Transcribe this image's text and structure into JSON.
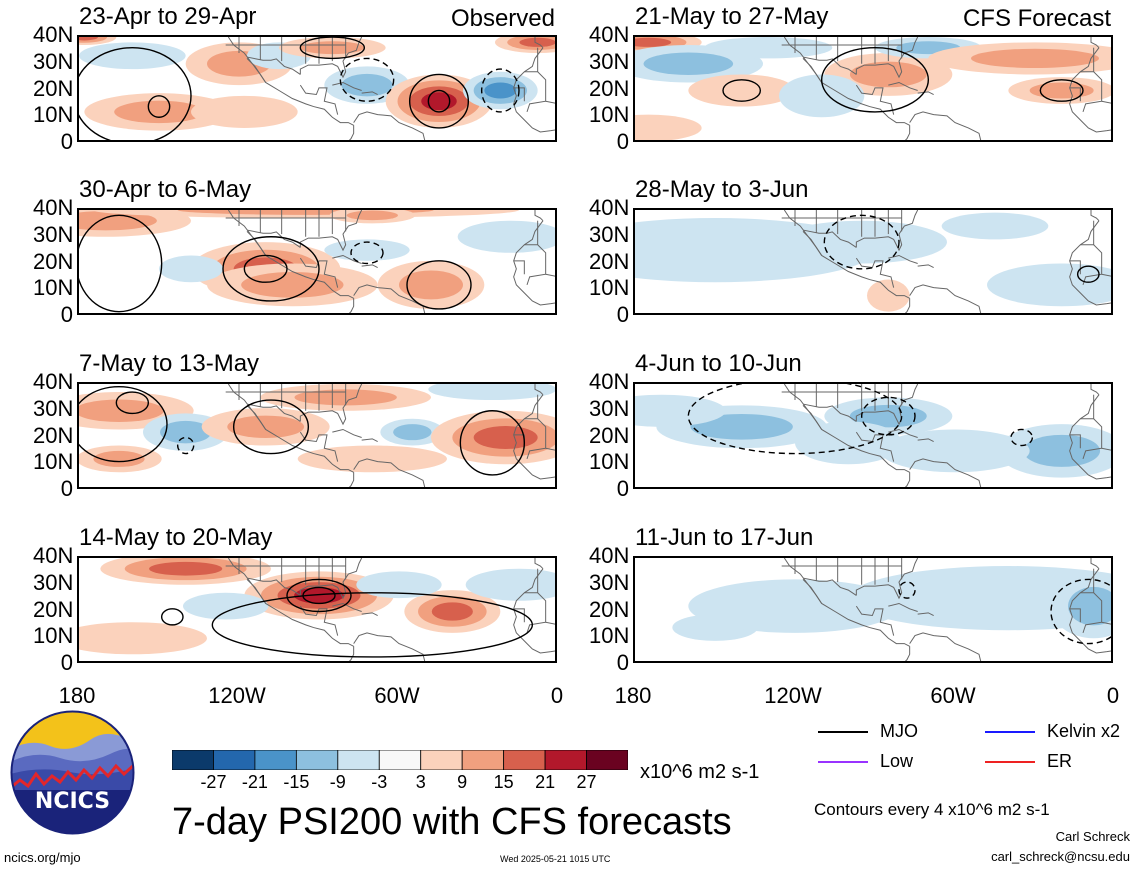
{
  "panels": [
    {
      "id": "p1",
      "column": "observed",
      "row": 0,
      "title": "23-Apr to 29-Apr",
      "tag": "Observed"
    },
    {
      "id": "p2",
      "column": "observed",
      "row": 1,
      "title": "30-Apr to 6-May",
      "tag": ""
    },
    {
      "id": "p3",
      "column": "observed",
      "row": 2,
      "title": "7-May to 13-May",
      "tag": ""
    },
    {
      "id": "p4",
      "column": "observed",
      "row": 3,
      "title": "14-May to 20-May",
      "tag": ""
    },
    {
      "id": "p5",
      "column": "forecast",
      "row": 0,
      "title": "21-May to 27-May",
      "tag": "CFS Forecast"
    },
    {
      "id": "p6",
      "column": "forecast",
      "row": 1,
      "title": "28-May to 3-Jun",
      "tag": ""
    },
    {
      "id": "p7",
      "column": "forecast",
      "row": 2,
      "title": "4-Jun to 10-Jun",
      "tag": ""
    },
    {
      "id": "p8",
      "column": "forecast",
      "row": 3,
      "title": "11-Jun to 17-Jun",
      "tag": ""
    }
  ],
  "lat_labels": [
    "40N",
    "30N",
    "20N",
    "10N",
    "0"
  ],
  "lon_labels": [
    "180",
    "120W",
    "60W",
    "0"
  ],
  "colorbar": {
    "labels": [
      "-27",
      "-21",
      "-15",
      "-9",
      "-3",
      "3",
      "9",
      "15",
      "21",
      "27"
    ],
    "colors": [
      "#0b3a6b",
      "#2367ad",
      "#4a93c9",
      "#8dc0df",
      "#cde4f1",
      "#f8f8f8",
      "#fbd2bc",
      "#f1a07f",
      "#d7604d",
      "#b2182b",
      "#6a0220"
    ],
    "units": "x10^6 m2 s-1"
  },
  "legend": [
    {
      "label": "MJO",
      "color": "#000000"
    },
    {
      "label": "Kelvin x2",
      "color": "#1a1aff"
    },
    {
      "label": "Low",
      "color": "#9933ff"
    },
    {
      "label": "ER",
      "color": "#ee2222"
    }
  ],
  "contour_note": "Contours every 4 x10^6 m2 s-1",
  "main_title": "7-day PSI200 with CFS forecasts",
  "logo_text": "NCICS",
  "site": "ncics.org/mjo",
  "timestamp": "Wed 2025-05-21 1015 UTC",
  "author": "Carl Schreck",
  "email": "carl_schreck@ncsu.edu",
  "shading": {
    "p1": [
      {
        "lon": -178,
        "lat": 40,
        "v": 18,
        "rx": 6,
        "ry": 3
      },
      {
        "lon": -150,
        "lat": 12,
        "v": 10,
        "rx": 14,
        "ry": 7
      },
      {
        "lon": -120,
        "lat": 30,
        "v": 8,
        "rx": 10,
        "ry": 8
      },
      {
        "lon": -118,
        "lat": 12,
        "v": 6,
        "rx": 10,
        "ry": 6
      },
      {
        "lon": -105,
        "lat": 33,
        "v": -6,
        "rx": 6,
        "ry": 5
      },
      {
        "lon": -85,
        "lat": 36,
        "v": 12,
        "rx": 10,
        "ry": 4
      },
      {
        "lon": -72,
        "lat": 22,
        "v": -12,
        "rx": 8,
        "ry": 7
      },
      {
        "lon": -45,
        "lat": 16,
        "v": 20,
        "rx": 10,
        "ry": 10
      },
      {
        "lon": -22,
        "lat": 20,
        "v": -14,
        "rx": 7,
        "ry": 7
      },
      {
        "lon": -8,
        "lat": 38,
        "v": 14,
        "rx": 8,
        "ry": 4
      },
      {
        "lon": -160,
        "lat": 33,
        "v": -5,
        "rx": 10,
        "ry": 5
      }
    ],
    "p2": [
      {
        "lon": -170,
        "lat": 36,
        "v": 10,
        "rx": 16,
        "ry": 6
      },
      {
        "lon": -110,
        "lat": 18,
        "v": 16,
        "rx": 14,
        "ry": 10
      },
      {
        "lon": -100,
        "lat": 12,
        "v": 8,
        "rx": 16,
        "ry": 8
      },
      {
        "lon": -95,
        "lat": 40,
        "v": 7,
        "rx": 40,
        "ry": 3
      },
      {
        "lon": -70,
        "lat": 38,
        "v": 12,
        "rx": 8,
        "ry": 3
      },
      {
        "lon": -48,
        "lat": 12,
        "v": 12,
        "rx": 10,
        "ry": 9
      },
      {
        "lon": -138,
        "lat": 18,
        "v": -4,
        "rx": 6,
        "ry": 5
      },
      {
        "lon": -72,
        "lat": 25,
        "v": -5,
        "rx": 8,
        "ry": 4
      },
      {
        "lon": -18,
        "lat": 30,
        "v": -4,
        "rx": 10,
        "ry": 6
      }
    ],
    "p3": [
      {
        "lon": -165,
        "lat": 30,
        "v": 10,
        "rx": 14,
        "ry": 7
      },
      {
        "lon": -165,
        "lat": 12,
        "v": 12,
        "rx": 8,
        "ry": 5
      },
      {
        "lon": -140,
        "lat": 22,
        "v": -8,
        "rx": 8,
        "ry": 7
      },
      {
        "lon": -110,
        "lat": 24,
        "v": 8,
        "rx": 12,
        "ry": 7
      },
      {
        "lon": -80,
        "lat": 35,
        "v": 10,
        "rx": 16,
        "ry": 5
      },
      {
        "lon": -55,
        "lat": 22,
        "v": -7,
        "rx": 6,
        "ry": 5
      },
      {
        "lon": -20,
        "lat": 20,
        "v": 14,
        "rx": 14,
        "ry": 10
      },
      {
        "lon": -25,
        "lat": 38,
        "v": -4,
        "rx": 12,
        "ry": 4
      },
      {
        "lon": -70,
        "lat": 12,
        "v": 5,
        "rx": 14,
        "ry": 5
      }
    ],
    "p4": [
      {
        "lon": -140,
        "lat": 36,
        "v": 18,
        "rx": 16,
        "ry": 6
      },
      {
        "lon": -90,
        "lat": 26,
        "v": 22,
        "rx": 14,
        "ry": 9
      },
      {
        "lon": -40,
        "lat": 20,
        "v": 14,
        "rx": 9,
        "ry": 8
      },
      {
        "lon": -125,
        "lat": 22,
        "v": -6,
        "rx": 8,
        "ry": 5
      },
      {
        "lon": -160,
        "lat": 10,
        "v": 5,
        "rx": 14,
        "ry": 6
      },
      {
        "lon": -15,
        "lat": 30,
        "v": -4,
        "rx": 10,
        "ry": 6
      },
      {
        "lon": -60,
        "lat": 30,
        "v": -4,
        "rx": 8,
        "ry": 5
      }
    ],
    "p5": [
      {
        "lon": -175,
        "lat": 38,
        "v": 18,
        "rx": 10,
        "ry": 4
      },
      {
        "lon": -160,
        "lat": 30,
        "v": -10,
        "rx": 14,
        "ry": 7
      },
      {
        "lon": -130,
        "lat": 36,
        "v": -6,
        "rx": 12,
        "ry": 4
      },
      {
        "lon": -85,
        "lat": 26,
        "v": 10,
        "rx": 12,
        "ry": 8
      },
      {
        "lon": -70,
        "lat": 36,
        "v": -8,
        "rx": 10,
        "ry": 4
      },
      {
        "lon": -30,
        "lat": 32,
        "v": 12,
        "rx": 20,
        "ry": 6
      },
      {
        "lon": -20,
        "lat": 20,
        "v": 8,
        "rx": 10,
        "ry": 5
      },
      {
        "lon": -175,
        "lat": 6,
        "v": 6,
        "rx": 10,
        "ry": 5
      },
      {
        "lon": -140,
        "lat": 20,
        "v": 4,
        "rx": 10,
        "ry": 6
      },
      {
        "lon": -110,
        "lat": 18,
        "v": -4,
        "rx": 8,
        "ry": 8
      }
    ],
    "p6": [
      {
        "lon": -150,
        "lat": 25,
        "v": -4,
        "rx": 30,
        "ry": 12
      },
      {
        "lon": -95,
        "lat": 28,
        "v": -6,
        "rx": 16,
        "ry": 8
      },
      {
        "lon": -85,
        "lat": 8,
        "v": 4,
        "rx": 4,
        "ry": 6
      },
      {
        "lon": -20,
        "lat": 12,
        "v": -4,
        "rx": 14,
        "ry": 8
      },
      {
        "lon": -45,
        "lat": 34,
        "v": -3,
        "rx": 10,
        "ry": 5
      }
    ],
    "p7": [
      {
        "lon": -140,
        "lat": 24,
        "v": -8,
        "rx": 16,
        "ry": 8
      },
      {
        "lon": -85,
        "lat": 28,
        "v": -10,
        "rx": 12,
        "ry": 7
      },
      {
        "lon": -100,
        "lat": 18,
        "v": -5,
        "rx": 10,
        "ry": 8
      },
      {
        "lon": -20,
        "lat": 15,
        "v": -10,
        "rx": 12,
        "ry": 10
      },
      {
        "lon": -60,
        "lat": 15,
        "v": -5,
        "rx": 14,
        "ry": 8
      },
      {
        "lon": -170,
        "lat": 30,
        "v": -4,
        "rx": 12,
        "ry": 6
      }
    ],
    "p8": [
      {
        "lon": -40,
        "lat": 25,
        "v": -6,
        "rx": 30,
        "ry": 12
      },
      {
        "lon": -8,
        "lat": 22,
        "v": -12,
        "rx": 8,
        "ry": 12
      },
      {
        "lon": -150,
        "lat": 14,
        "v": -6,
        "rx": 8,
        "ry": 5
      },
      {
        "lon": -120,
        "lat": 22,
        "v": -3,
        "rx": 20,
        "ry": 10
      }
    ]
  },
  "contours": {
    "p1": [
      {
        "lon": -160,
        "lat": 18,
        "rx": 22,
        "ry": 18,
        "dash": false
      },
      {
        "lon": -150,
        "lat": 14,
        "rx": 4,
        "ry": 4,
        "dash": false
      },
      {
        "lon": -45,
        "lat": 16,
        "rx": 11,
        "ry": 10,
        "dash": false
      },
      {
        "lon": -45,
        "lat": 16,
        "rx": 4,
        "ry": 4,
        "dash": false
      },
      {
        "lon": -85,
        "lat": 36,
        "rx": 12,
        "ry": 4,
        "dash": false
      },
      {
        "lon": -72,
        "lat": 24,
        "rx": 10,
        "ry": 8,
        "dash": true
      },
      {
        "lon": -22,
        "lat": 20,
        "rx": 7,
        "ry": 8,
        "dash": true
      }
    ],
    "p2": [
      {
        "lon": -165,
        "lat": 20,
        "rx": 16,
        "ry": 18,
        "dash": false
      },
      {
        "lon": -108,
        "lat": 18,
        "rx": 18,
        "ry": 12,
        "dash": false
      },
      {
        "lon": -110,
        "lat": 18,
        "rx": 8,
        "ry": 5,
        "dash": false
      },
      {
        "lon": -45,
        "lat": 12,
        "rx": 12,
        "ry": 9,
        "dash": false
      },
      {
        "lon": -72,
        "lat": 24,
        "rx": 6,
        "ry": 4,
        "dash": true
      }
    ],
    "p3": [
      {
        "lon": -165,
        "lat": 25,
        "rx": 18,
        "ry": 14,
        "dash": false
      },
      {
        "lon": -160,
        "lat": 33,
        "rx": 6,
        "ry": 4,
        "dash": false
      },
      {
        "lon": -108,
        "lat": 24,
        "rx": 14,
        "ry": 10,
        "dash": false
      },
      {
        "lon": -25,
        "lat": 18,
        "rx": 12,
        "ry": 12,
        "dash": false
      },
      {
        "lon": -140,
        "lat": 17,
        "rx": 3,
        "ry": 3,
        "dash": true
      }
    ],
    "p4": [
      {
        "lon": -90,
        "lat": 26,
        "rx": 12,
        "ry": 6,
        "dash": false
      },
      {
        "lon": -90,
        "lat": 26,
        "rx": 6,
        "ry": 3,
        "dash": false
      },
      {
        "lon": -145,
        "lat": 18,
        "rx": 4,
        "ry": 3,
        "dash": false
      },
      {
        "lon": -70,
        "lat": 15,
        "rx": 60,
        "ry": 12,
        "dash": false
      }
    ],
    "p5": [
      {
        "lon": -140,
        "lat": 20,
        "rx": 7,
        "ry": 4,
        "dash": false
      },
      {
        "lon": -90,
        "lat": 24,
        "rx": 20,
        "ry": 12,
        "dash": false
      },
      {
        "lon": -20,
        "lat": 20,
        "rx": 8,
        "ry": 4,
        "dash": false
      }
    ],
    "p6": [
      {
        "lon": -10,
        "lat": 16,
        "rx": 4,
        "ry": 3,
        "dash": false
      },
      {
        "lon": -95,
        "lat": 28,
        "rx": 14,
        "ry": 10,
        "dash": true
      }
    ],
    "p7": [
      {
        "lon": -85,
        "lat": 28,
        "rx": 10,
        "ry": 7,
        "dash": true
      },
      {
        "lon": -35,
        "lat": 20,
        "rx": 4,
        "ry": 3,
        "dash": true
      },
      {
        "lon": -120,
        "lat": 28,
        "rx": 40,
        "ry": 14,
        "dash": true
      }
    ],
    "p8": [
      {
        "lon": -10,
        "lat": 20,
        "rx": 14,
        "ry": 12,
        "dash": true
      },
      {
        "lon": -78,
        "lat": 28,
        "rx": 3,
        "ry": 3,
        "dash": true
      }
    ]
  }
}
